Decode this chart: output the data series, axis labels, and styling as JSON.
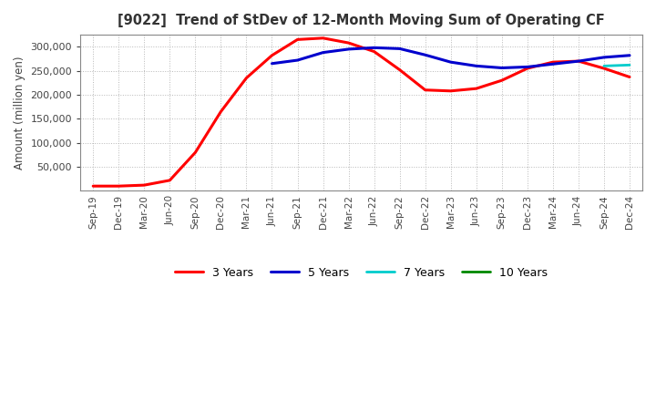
{
  "title": "[9022]  Trend of StDev of 12-Month Moving Sum of Operating CF",
  "ylabel": "Amount (million yen)",
  "ylim": [
    0,
    325000
  ],
  "yticks": [
    50000,
    100000,
    150000,
    200000,
    250000,
    300000
  ],
  "background_color": "#ffffff",
  "grid_color": "#b0b0b0",
  "legend_labels": [
    "3 Years",
    "5 Years",
    "7 Years",
    "10 Years"
  ],
  "legend_colors": [
    "#ff0000",
    "#0000cd",
    "#00cccc",
    "#008800"
  ],
  "x_labels": [
    "Sep-19",
    "Dec-19",
    "Mar-20",
    "Jun-20",
    "Sep-20",
    "Dec-20",
    "Mar-21",
    "Jun-21",
    "Sep-21",
    "Dec-21",
    "Mar-22",
    "Jun-22",
    "Sep-22",
    "Dec-22",
    "Mar-23",
    "Jun-23",
    "Sep-23",
    "Dec-23",
    "Mar-24",
    "Jun-24",
    "Sep-24",
    "Dec-24"
  ],
  "series_3y": [
    10000,
    10000,
    12000,
    22000,
    80000,
    165000,
    235000,
    282000,
    315000,
    318000,
    308000,
    290000,
    252000,
    210000,
    208000,
    213000,
    230000,
    255000,
    268000,
    270000,
    255000,
    237000
  ],
  "series_5y": [
    null,
    null,
    null,
    null,
    null,
    null,
    null,
    265000,
    272000,
    288000,
    295000,
    298000,
    296000,
    283000,
    268000,
    260000,
    256000,
    258000,
    264000,
    270000,
    278000,
    282000
  ],
  "series_7y": [
    null,
    null,
    null,
    null,
    null,
    null,
    null,
    null,
    null,
    null,
    null,
    null,
    null,
    null,
    null,
    null,
    null,
    null,
    null,
    null,
    260000,
    262000
  ],
  "series_10y": [
    null,
    null,
    null,
    null,
    null,
    null,
    null,
    null,
    null,
    null,
    null,
    null,
    null,
    null,
    null,
    null,
    null,
    null,
    null,
    null,
    null,
    null
  ]
}
